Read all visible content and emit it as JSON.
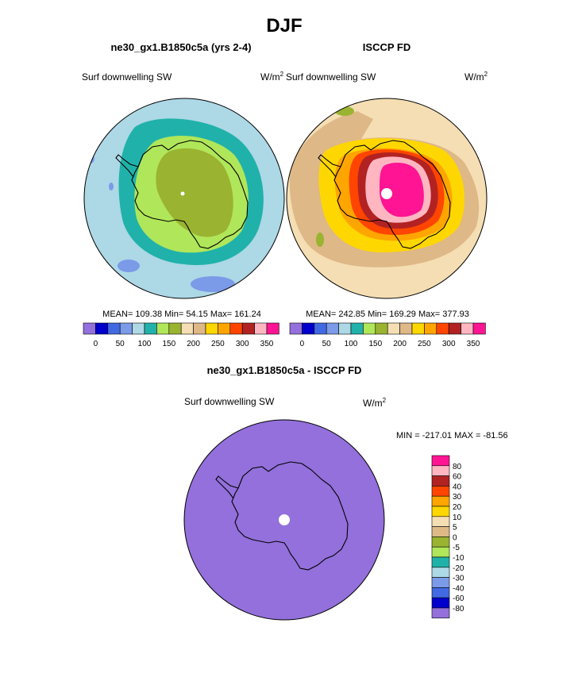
{
  "page_title": "DJF",
  "colors": {
    "c0": "#9370db",
    "c1": "#0000cd",
    "c2": "#4169e1",
    "c3": "#7b9ae8",
    "c4": "#add8e6",
    "c5": "#20b2aa",
    "c6": "#b0e65a",
    "c7": "#9ab330",
    "c8": "#f5deb3",
    "c9": "#deb887",
    "c10": "#ffd700",
    "c11": "#ffa500",
    "c12": "#ff4500",
    "c13": "#b22222",
    "c14": "#ffb6c1",
    "c15": "#ff1493",
    "coast": "#000000",
    "pole": "#ffffff"
  },
  "chart_data": [
    {
      "type": "heatmap",
      "projection": "south-polar-stereographic",
      "title": "ne30_gx1.B1850c5a (yrs 2-4)",
      "variable": "Surf downwelling SW",
      "units": "W/m",
      "units_exp": "2",
      "stats": "MEAN= 109.38  Min=  54.15  Max= 161.24",
      "mean": 109.38,
      "min": 54.15,
      "max": 161.24,
      "colorbar": {
        "orientation": "horizontal",
        "colors": [
          "#9370db",
          "#0000cd",
          "#4169e1",
          "#7b9ae8",
          "#add8e6",
          "#20b2aa",
          "#b0e65a",
          "#9ab330",
          "#f5deb3",
          "#deb887",
          "#ffd700",
          "#ffa500",
          "#ff4500",
          "#b22222",
          "#ffb6c1",
          "#ff1493"
        ],
        "tick_labels": [
          "0",
          "50",
          "100",
          "150",
          "200",
          "250",
          "300",
          "350"
        ]
      }
    },
    {
      "type": "heatmap",
      "projection": "south-polar-stereographic",
      "title": "ISCCP FD",
      "variable": "Surf downwelling SW",
      "units": "W/m",
      "units_exp": "2",
      "stats": "MEAN= 242.85  Min= 169.29  Max= 377.93",
      "mean": 242.85,
      "min": 169.29,
      "max": 377.93,
      "colorbar": {
        "orientation": "horizontal",
        "colors": [
          "#9370db",
          "#0000cd",
          "#4169e1",
          "#7b9ae8",
          "#add8e6",
          "#20b2aa",
          "#b0e65a",
          "#9ab330",
          "#f5deb3",
          "#deb887",
          "#ffd700",
          "#ffa500",
          "#ff4500",
          "#b22222",
          "#ffb6c1",
          "#ff1493"
        ],
        "tick_labels": [
          "0",
          "50",
          "100",
          "150",
          "200",
          "250",
          "300",
          "350"
        ]
      }
    },
    {
      "type": "heatmap",
      "projection": "south-polar-stereographic",
      "title": "ne30_gx1.B1850c5a - ISCCP FD",
      "variable": "Surf downwelling SW",
      "units": "W/m",
      "units_exp": "2",
      "stats": "MIN = -217.01 MAX = -81.56",
      "min": -217.01,
      "max": -81.56,
      "colorbar": {
        "orientation": "vertical",
        "colors": [
          "#ff1493",
          "#ffb6c1",
          "#b22222",
          "#ff4500",
          "#ffa500",
          "#ffd700",
          "#f5deb3",
          "#deb887",
          "#9ab330",
          "#b0e65a",
          "#20b2aa",
          "#add8e6",
          "#7b9ae8",
          "#4169e1",
          "#0000cd",
          "#9370db"
        ],
        "tick_labels": [
          "80",
          "60",
          "40",
          "30",
          "20",
          "10",
          "5",
          "0",
          "-5",
          "-10",
          "-20",
          "-30",
          "-40",
          "-60",
          "-80"
        ]
      }
    }
  ]
}
